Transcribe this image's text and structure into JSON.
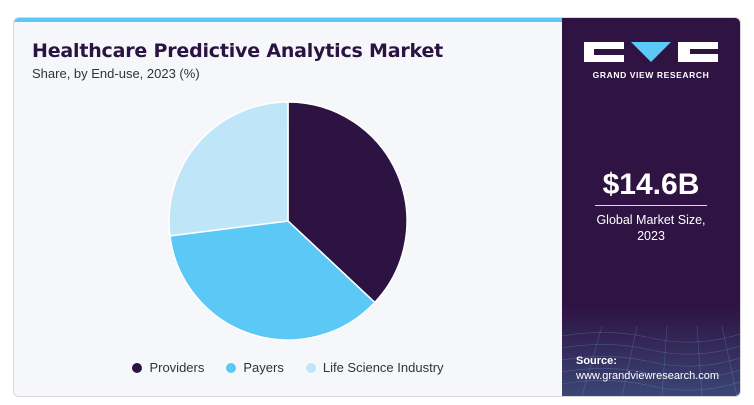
{
  "header": {
    "title": "Healthcare Predictive Analytics Market",
    "subtitle": "Share, by End-use, 2023 (%)"
  },
  "chart_data": {
    "type": "pie",
    "title": "Healthcare Predictive Analytics Market",
    "subtitle": "Share, by End-use, 2023 (%)",
    "categories": [
      "Providers",
      "Payers",
      "Life Science Industry"
    ],
    "values": [
      37,
      36,
      27
    ],
    "colors": [
      "#2d1342",
      "#5bc8f5",
      "#bfe6f8"
    ],
    "legend_placement": "bottom",
    "start_angle_deg": 0,
    "direction": "clockwise"
  },
  "legend": {
    "items": [
      {
        "label": "Providers",
        "color": "#2d1342"
      },
      {
        "label": "Payers",
        "color": "#5bc8f5"
      },
      {
        "label": "Life Science Industry",
        "color": "#bfe6f8"
      }
    ]
  },
  "sidebar": {
    "logo_text": "GRAND VIEW RESEARCH",
    "market_value": "$14.6B",
    "market_label": "Global Market Size, 2023",
    "source_label": "Source:",
    "source_url": "www.grandviewresearch.com"
  },
  "colors": {
    "brand_dark": "#2e1343",
    "accent": "#5bc8f5",
    "light_accent": "#bfe6f8"
  }
}
